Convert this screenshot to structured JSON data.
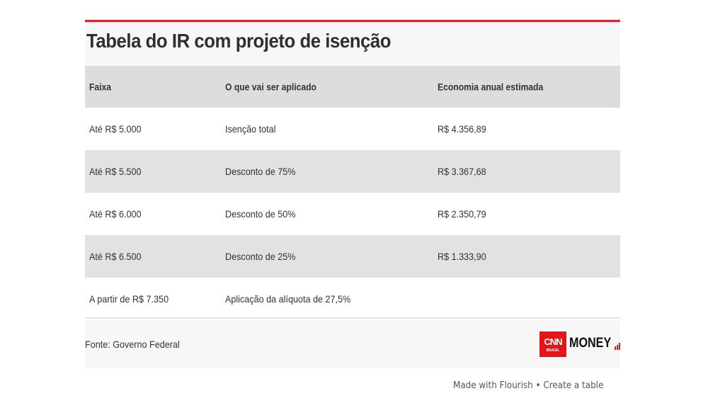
{
  "title": "Tabela do IR com projeto de isenção",
  "table": {
    "headers": [
      "Faixa",
      "O que vai ser aplicado",
      "Economia anual estimada"
    ],
    "rows": [
      [
        "Até R$ 5.000",
        "Isenção total",
        "R$ 4.356,89"
      ],
      [
        "Até R$ 5.500",
        "Desconto de 75%",
        "R$ 3.367,68"
      ],
      [
        "Até R$ 6.000",
        "Desconto de 50%",
        "R$ 2.350,79"
      ],
      [
        "Até R$ 6.500",
        "Desconto de 25%",
        "R$ 1.333,90"
      ],
      [
        "A partir de R$ 7.350",
        "Aplicação da alíquota de 27,5%",
        ""
      ]
    ]
  },
  "source": "Fonte: Governo Federal",
  "logo": {
    "brand": "CNN",
    "sub": "BRASIL",
    "product": "MONEY"
  },
  "credit": "Made with Flourish • Create a table",
  "colors": {
    "accent": "#e0242f",
    "header_bg": "#dedcdd",
    "stripe_bg": "#e3e1e2"
  }
}
